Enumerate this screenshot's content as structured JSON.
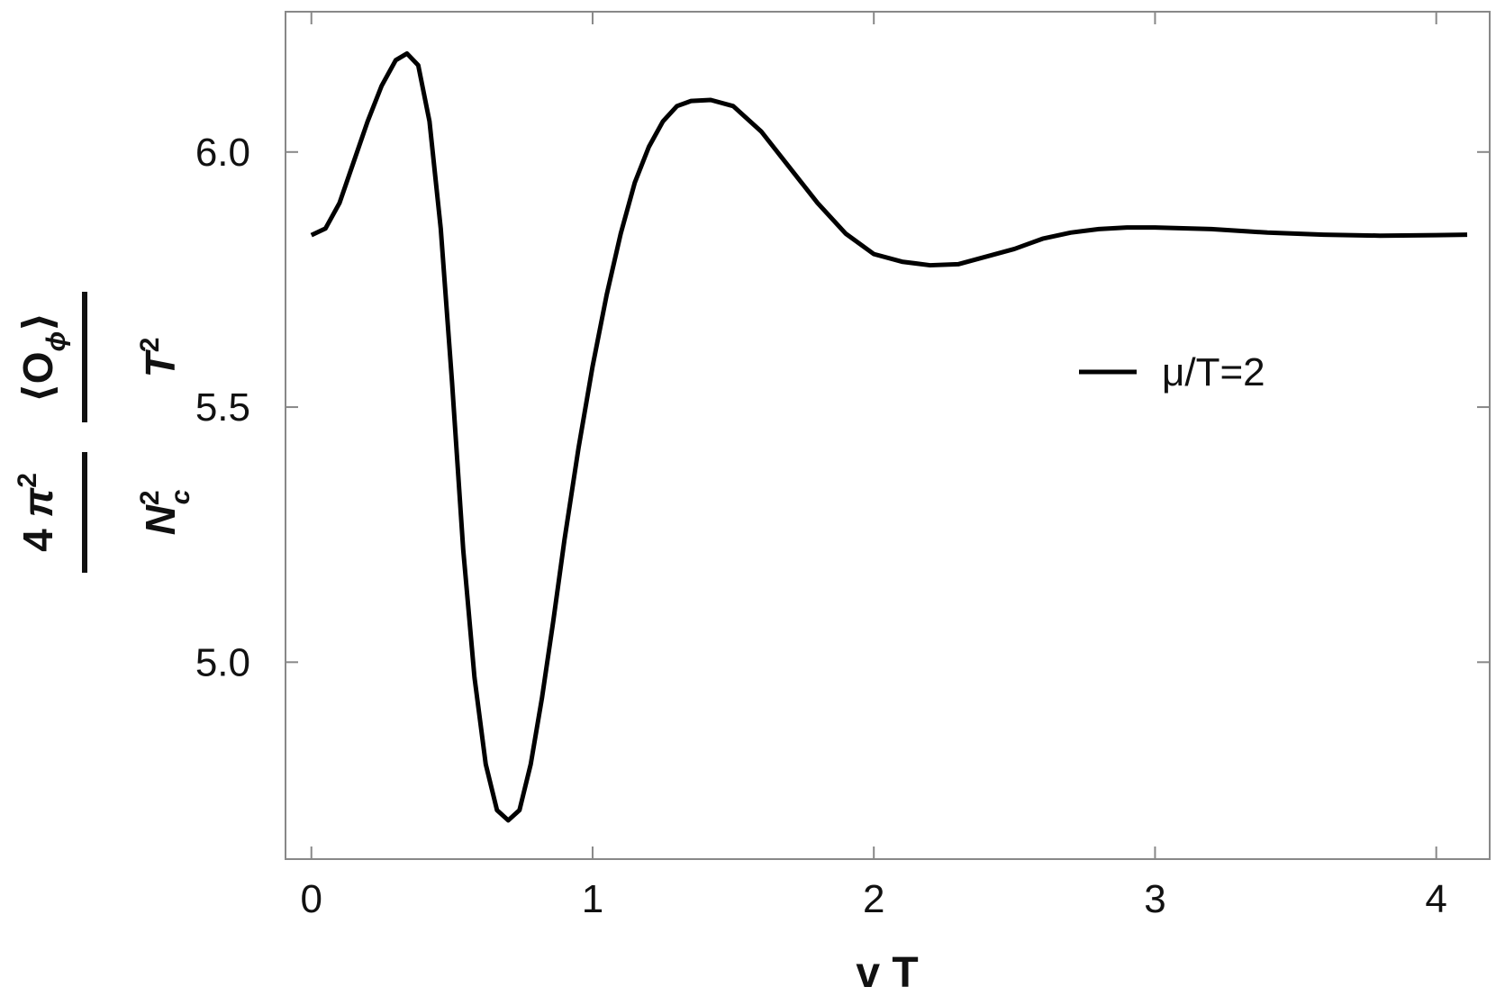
{
  "chart_data": {
    "type": "line",
    "xlabel": "v T",
    "ylabel": [
      {
        "numerator": [
          "4 ",
          "π",
          "2"
        ],
        "denominator": [
          "N",
          "2",
          "c"
        ]
      },
      {
        "numerator": [
          "⟨O",
          "ϕ",
          "⟩"
        ],
        "denominator": [
          "T",
          "2"
        ]
      }
    ],
    "x": [
      0,
      0.05,
      0.1,
      0.15,
      0.2,
      0.25,
      0.3,
      0.34,
      0.38,
      0.42,
      0.46,
      0.5,
      0.54,
      0.58,
      0.62,
      0.66,
      0.7,
      0.74,
      0.78,
      0.82,
      0.86,
      0.9,
      0.95,
      1.0,
      1.05,
      1.1,
      1.15,
      1.2,
      1.25,
      1.3,
      1.35,
      1.42,
      1.5,
      1.6,
      1.7,
      1.8,
      1.9,
      2.0,
      2.1,
      2.2,
      2.3,
      2.4,
      2.5,
      2.6,
      2.7,
      2.8,
      2.9,
      3.0,
      3.2,
      3.4,
      3.6,
      3.8,
      4.0,
      4.11
    ],
    "series": [
      {
        "name": "μ/T=2",
        "color": "#000000",
        "values": [
          5.837,
          5.85,
          5.9,
          5.98,
          6.06,
          6.13,
          6.18,
          6.193,
          6.17,
          6.06,
          5.85,
          5.55,
          5.22,
          4.97,
          4.8,
          4.71,
          4.69,
          4.71,
          4.8,
          4.93,
          5.08,
          5.24,
          5.42,
          5.58,
          5.72,
          5.84,
          5.94,
          6.01,
          6.06,
          6.09,
          6.1,
          6.102,
          6.09,
          6.04,
          5.97,
          5.9,
          5.84,
          5.8,
          5.785,
          5.778,
          5.78,
          5.795,
          5.81,
          5.83,
          5.842,
          5.849,
          5.852,
          5.852,
          5.849,
          5.842,
          5.838,
          5.836,
          5.837,
          5.838
        ]
      }
    ],
    "xlim": [
      -0.092,
      4.19
    ],
    "ylim": [
      4.614,
      6.275
    ],
    "xticks": [
      0,
      1,
      2,
      3,
      4
    ],
    "yticks": [
      {
        "value": 5,
        "label": "5.0"
      },
      5.5,
      {
        "value": 6,
        "label": "6.0"
      }
    ],
    "legend": "right"
  }
}
